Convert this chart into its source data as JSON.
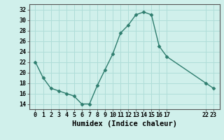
{
  "x": [
    0,
    1,
    2,
    3,
    4,
    5,
    6,
    7,
    8,
    9,
    10,
    11,
    12,
    13,
    14,
    15,
    16,
    17,
    22,
    23
  ],
  "y": [
    22,
    19,
    17,
    16.5,
    16,
    15.5,
    14,
    14,
    17.5,
    20.5,
    23.5,
    27.5,
    29,
    31,
    31.5,
    31,
    25,
    23,
    18,
    17
  ],
  "line_color": "#2e7d6e",
  "marker": "D",
  "marker_size": 2.5,
  "bg_color": "#d0f0eb",
  "grid_color": "#b0ddd8",
  "xlabel": "Humidex (Indice chaleur)",
  "xlim": [
    -0.8,
    23.8
  ],
  "ylim": [
    13,
    33
  ],
  "yticks": [
    14,
    16,
    18,
    20,
    22,
    24,
    26,
    28,
    30,
    32
  ],
  "xticks": [
    0,
    1,
    2,
    3,
    4,
    5,
    6,
    7,
    8,
    9,
    10,
    11,
    12,
    13,
    14,
    15,
    16,
    17,
    22,
    23
  ],
  "xtick_labels": [
    "0",
    "1",
    "2",
    "3",
    "4",
    "5",
    "6",
    "7",
    "8",
    "9",
    "10",
    "11",
    "12",
    "13",
    "14",
    "15",
    "16",
    "17",
    "22",
    "23"
  ],
  "xlabel_fontsize": 7.5,
  "tick_fontsize": 6.0
}
